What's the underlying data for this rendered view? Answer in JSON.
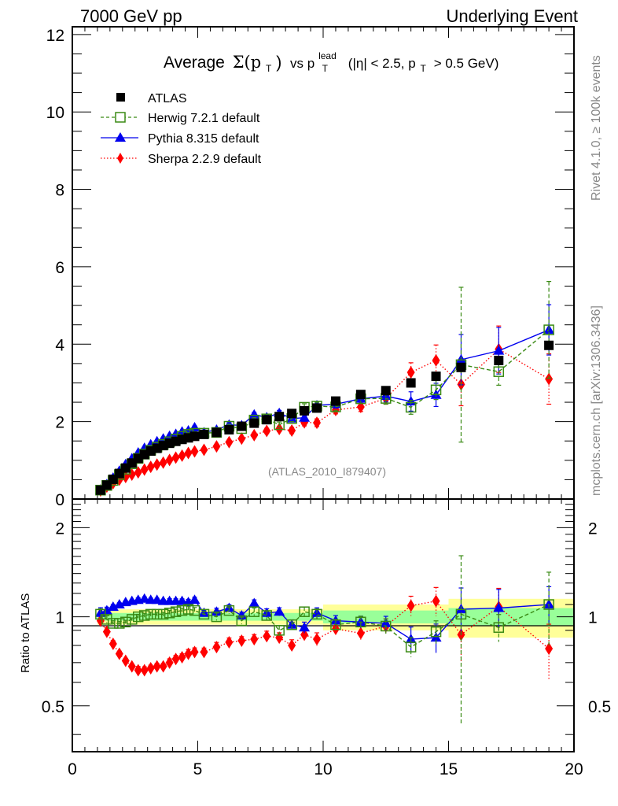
{
  "header": {
    "left": "7000 GeV pp",
    "right": "Underlying Event"
  },
  "side_labels": {
    "rivet": "Rivet 4.1.0, ≥ 100k events",
    "mcplots": "mcplots.cern.ch [arXiv:1306.3436]"
  },
  "analysis_tag": "(ATLAS_2010_I879407)",
  "chart_data": [
    {
      "type": "scatter",
      "panel": "main",
      "title": "Average Σ(p_T) vs p_T^lead (|η| < 2.5, p_T > 0.5 GeV)",
      "title_parts": {
        "prefix": "Average",
        "sigma": "Σ(p",
        "sub_t": "T",
        "close": ")",
        "vs": "vs p",
        "sup": "lead",
        "sub_t2": "T",
        "cuts_a": "(|η| < 2.5, p",
        "sub_t3": "T",
        "cuts_b": "> 0.5 GeV)"
      },
      "xlabel": "",
      "ylabel": "",
      "xlim": [
        0,
        20
      ],
      "ylim": [
        0,
        12.2
      ],
      "xticks": [
        0,
        5,
        10,
        15,
        20
      ],
      "yticks": [
        0,
        2,
        4,
        6,
        8,
        10,
        12
      ],
      "ytick_labels": [
        "0",
        "2",
        "4",
        "6",
        "8",
        "10",
        "12"
      ],
      "legend": {
        "placement": "top-left",
        "entries": [
          "ATLAS",
          "Herwig 7.2.1 default",
          "Pythia 8.315 default",
          "Sherpa 2.2.9 default"
        ]
      },
      "x": [
        1.125,
        1.375,
        1.625,
        1.875,
        2.125,
        2.375,
        2.625,
        2.875,
        3.125,
        3.375,
        3.625,
        3.875,
        4.125,
        4.375,
        4.625,
        4.875,
        5.25,
        5.75,
        6.25,
        6.75,
        7.25,
        7.75,
        8.25,
        8.75,
        9.25,
        9.75,
        10.5,
        11.5,
        12.5,
        13.5,
        14.5,
        15.5,
        17,
        19
      ],
      "series": [
        {
          "name": "ATLAS",
          "color": "#000000",
          "marker": "square",
          "values": [
            0.23,
            0.36,
            0.51,
            0.66,
            0.8,
            0.93,
            1.05,
            1.15,
            1.24,
            1.31,
            1.38,
            1.44,
            1.49,
            1.54,
            1.58,
            1.62,
            1.67,
            1.72,
            1.79,
            1.88,
            1.96,
            2.05,
            2.13,
            2.21,
            2.28,
            2.35,
            2.53,
            2.7,
            2.8,
            3.0,
            3.17,
            3.4,
            3.58,
            3.97
          ]
        },
        {
          "name": "Herwig 7.2.1 default",
          "color": "#3a8a14",
          "marker": "open-square",
          "line": "dashed",
          "values": [
            0.23,
            0.35,
            0.48,
            0.63,
            0.77,
            0.91,
            1.05,
            1.16,
            1.26,
            1.34,
            1.41,
            1.48,
            1.55,
            1.62,
            1.67,
            1.7,
            1.7,
            1.72,
            1.88,
            1.82,
            2.04,
            2.07,
            1.92,
            2.08,
            2.37,
            2.4,
            2.38,
            2.59,
            2.6,
            2.37,
            2.82,
            3.47,
            3.29,
            4.37
          ],
          "errors": [
            0.01,
            0.01,
            0.01,
            0.01,
            0.01,
            0.01,
            0.02,
            0.02,
            0.02,
            0.02,
            0.02,
            0.03,
            0.03,
            0.03,
            0.04,
            0.04,
            0.04,
            0.05,
            0.05,
            0.05,
            0.06,
            0.07,
            0.07,
            0.08,
            0.09,
            0.1,
            0.1,
            0.12,
            0.15,
            0.18,
            0.25,
            2.0,
            0.35,
            1.25
          ]
        },
        {
          "name": "Pythia 8.315 default",
          "color": "#0000ee",
          "marker": "triangle",
          "line": "solid",
          "values": [
            0.24,
            0.38,
            0.55,
            0.73,
            0.9,
            1.05,
            1.2,
            1.32,
            1.41,
            1.49,
            1.56,
            1.63,
            1.68,
            1.74,
            1.77,
            1.85,
            1.72,
            1.79,
            1.92,
            1.9,
            2.18,
            2.11,
            2.22,
            2.08,
            2.1,
            2.42,
            2.45,
            2.59,
            2.66,
            2.52,
            2.69,
            3.6,
            3.83,
            4.37
          ],
          "errors": [
            0.01,
            0.01,
            0.01,
            0.01,
            0.01,
            0.01,
            0.02,
            0.02,
            0.02,
            0.02,
            0.02,
            0.03,
            0.03,
            0.03,
            0.04,
            0.04,
            0.04,
            0.05,
            0.05,
            0.05,
            0.06,
            0.07,
            0.07,
            0.08,
            0.09,
            0.1,
            0.1,
            0.12,
            0.15,
            0.25,
            0.3,
            0.65,
            0.6,
            0.65
          ]
        },
        {
          "name": "Sherpa 2.2.9 default",
          "color": "#ff0000",
          "marker": "diamond",
          "line": "dotted",
          "values": [
            0.22,
            0.32,
            0.41,
            0.5,
            0.57,
            0.63,
            0.69,
            0.76,
            0.83,
            0.89,
            0.94,
            1.01,
            1.07,
            1.12,
            1.19,
            1.23,
            1.27,
            1.36,
            1.47,
            1.56,
            1.65,
            1.76,
            1.81,
            1.77,
            1.98,
            1.97,
            2.3,
            2.38,
            2.6,
            3.27,
            3.58,
            2.96,
            3.87,
            3.1
          ],
          "errors": [
            0.01,
            0.01,
            0.01,
            0.01,
            0.01,
            0.01,
            0.02,
            0.02,
            0.02,
            0.02,
            0.02,
            0.03,
            0.03,
            0.03,
            0.04,
            0.04,
            0.04,
            0.05,
            0.05,
            0.05,
            0.06,
            0.07,
            0.07,
            0.08,
            0.09,
            0.1,
            0.1,
            0.12,
            0.15,
            0.25,
            0.4,
            0.55,
            0.6,
            0.65
          ]
        }
      ]
    },
    {
      "type": "scatter",
      "panel": "ratio",
      "ylabel": "Ratio to ATLAS",
      "yscale": "log",
      "xlim": [
        0,
        20
      ],
      "ylim": [
        0.35,
        2.5
      ],
      "xticks": [
        0,
        5,
        10,
        15,
        20
      ],
      "xtick_labels": [
        "0",
        "5",
        "10",
        "15",
        "20"
      ],
      "yticks": [
        0.5,
        1,
        2
      ],
      "ytick_labels": [
        "0.5",
        "1",
        "2"
      ],
      "band_1sigma_color": "#99ff99",
      "band_2sigma_color": "#ffff99",
      "bands": {
        "x_edges": [
          1.0,
          5.0,
          10.0,
          15.0,
          20.0
        ],
        "inner_halfwidth": [
          0.03,
          0.03,
          0.05,
          0.07
        ],
        "outer_halfwidth": [
          0.06,
          0.06,
          0.1,
          0.15
        ]
      },
      "x": [
        1.125,
        1.375,
        1.625,
        1.875,
        2.125,
        2.375,
        2.625,
        2.875,
        3.125,
        3.375,
        3.625,
        3.875,
        4.125,
        4.375,
        4.625,
        4.875,
        5.25,
        5.75,
        6.25,
        6.75,
        7.25,
        7.75,
        8.25,
        8.75,
        9.25,
        9.75,
        10.5,
        11.5,
        12.5,
        13.5,
        14.5,
        15.5,
        17,
        19
      ],
      "series": [
        {
          "name": "Herwig 7.2.1 default",
          "color": "#3a8a14",
          "values": [
            1.02,
            0.98,
            0.95,
            0.95,
            0.96,
            0.98,
            1.0,
            1.01,
            1.02,
            1.02,
            1.02,
            1.03,
            1.04,
            1.05,
            1.06,
            1.05,
            1.02,
            1.0,
            1.05,
            0.97,
            1.04,
            1.01,
            0.9,
            0.94,
            1.04,
            1.02,
            0.94,
            0.96,
            0.93,
            0.79,
            0.89,
            1.02,
            0.92,
            1.1
          ]
        },
        {
          "name": "Pythia 8.315 default",
          "color": "#0000ee",
          "values": [
            1.03,
            1.05,
            1.08,
            1.1,
            1.12,
            1.13,
            1.14,
            1.15,
            1.14,
            1.14,
            1.13,
            1.13,
            1.13,
            1.13,
            1.12,
            1.14,
            1.03,
            1.04,
            1.07,
            1.01,
            1.11,
            1.03,
            1.04,
            0.94,
            0.92,
            1.03,
            0.97,
            0.96,
            0.95,
            0.84,
            0.85,
            1.06,
            1.07,
            1.1
          ]
        },
        {
          "name": "Sherpa 2.2.9 default",
          "color": "#ff0000",
          "values": [
            0.97,
            0.89,
            0.81,
            0.75,
            0.71,
            0.68,
            0.66,
            0.66,
            0.67,
            0.68,
            0.68,
            0.7,
            0.72,
            0.73,
            0.75,
            0.76,
            0.76,
            0.79,
            0.82,
            0.83,
            0.84,
            0.86,
            0.85,
            0.8,
            0.87,
            0.84,
            0.91,
            0.88,
            0.93,
            1.09,
            1.13,
            0.87,
            1.08,
            0.78
          ]
        }
      ]
    }
  ]
}
